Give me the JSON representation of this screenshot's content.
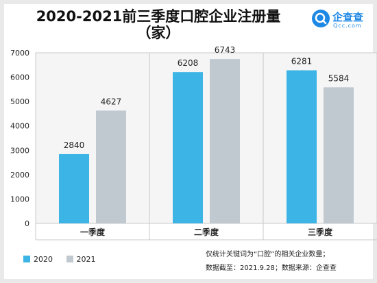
{
  "title_line1": "2020-2021前三季度口腔企业注册量",
  "title_line2": "（家）",
  "logo": {
    "name": "企查查",
    "domain": "Qcc.com"
  },
  "colors": {
    "s2020": "#3cb4e5",
    "s2021": "#c0c8d0"
  },
  "footnote": {
    "line1": "仅统计关键词为“口腔”的相关企业数量；",
    "line2": "数据截至：2021.9.28；数据来源：企查查"
  },
  "chart_data": {
    "type": "bar",
    "categories": [
      "一季度",
      "二季度",
      "三季度"
    ],
    "series": [
      {
        "name": "2020",
        "values": [
          2840,
          6208,
          6281
        ]
      },
      {
        "name": "2021",
        "values": [
          4627,
          6743,
          5584
        ]
      }
    ],
    "ylim": [
      0,
      7000
    ],
    "yticks": [
      0,
      1000,
      2000,
      3000,
      4000,
      5000,
      6000,
      7000
    ],
    "legend_position": "bottom-left"
  }
}
